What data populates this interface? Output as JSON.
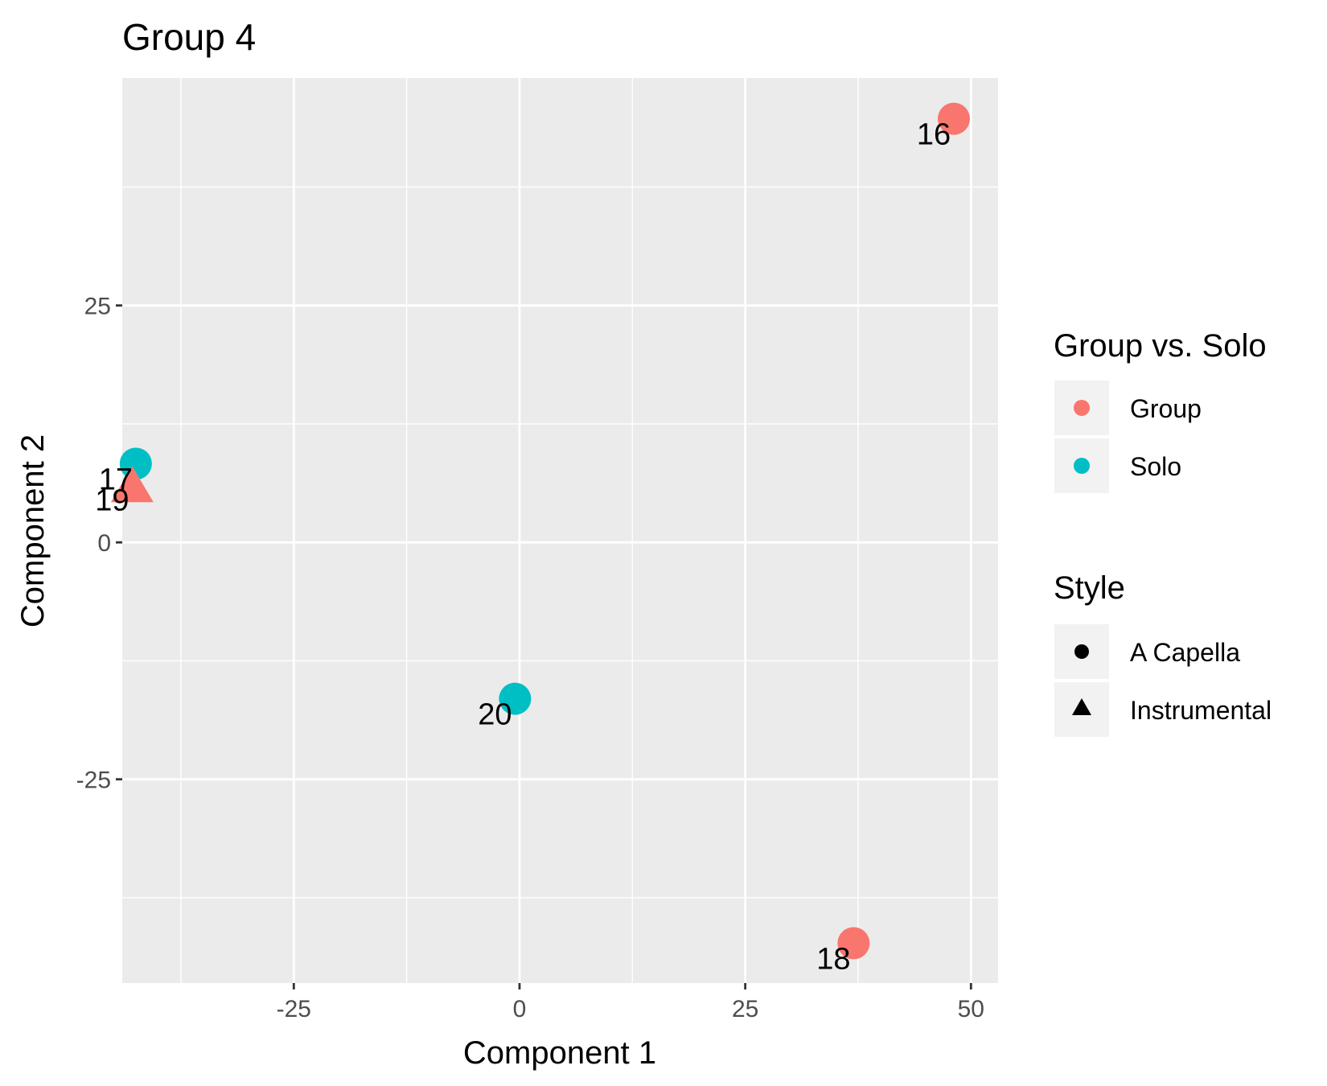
{
  "chart_data": {
    "type": "scatter",
    "title": "Group 4",
    "xlabel": "Component 1",
    "ylabel": "Component 2",
    "xlim": [
      -44,
      53
    ],
    "ylim": [
      -46.5,
      49
    ],
    "x_ticks": [
      -25,
      0,
      25,
      50
    ],
    "y_ticks": [
      -25,
      0,
      25
    ],
    "x_tick_labels": [
      "-25",
      "0",
      "25",
      "50"
    ],
    "y_tick_labels": [
      "-25",
      "0",
      "25"
    ],
    "grid": true,
    "legend_position": "right",
    "colors": {
      "Group": "#F8766D",
      "Solo": "#00BFC4"
    },
    "points": [
      {
        "label": "16",
        "x": 48.1,
        "y": 44.7,
        "group": "Group",
        "style": "A Capella"
      },
      {
        "label": "17",
        "x": -42.5,
        "y": 8.3,
        "group": "Solo",
        "style": "A Capella"
      },
      {
        "label": "18",
        "x": 37.0,
        "y": -42.3,
        "group": "Group",
        "style": "A Capella"
      },
      {
        "label": "19",
        "x": -42.9,
        "y": 6.1,
        "group": "Group",
        "style": "Instrumental"
      },
      {
        "label": "20",
        "x": -0.5,
        "y": -16.5,
        "group": "Solo",
        "style": "A Capella"
      }
    ],
    "legend": {
      "color_title": "Group vs. Solo",
      "color_items": [
        {
          "label": "Group",
          "color": "#F8766D"
        },
        {
          "label": "Solo",
          "color": "#00BFC4"
        }
      ],
      "shape_title": "Style",
      "shape_items": [
        {
          "label": "A Capella",
          "shape": "circle"
        },
        {
          "label": "Instrumental",
          "shape": "triangle"
        }
      ]
    }
  }
}
